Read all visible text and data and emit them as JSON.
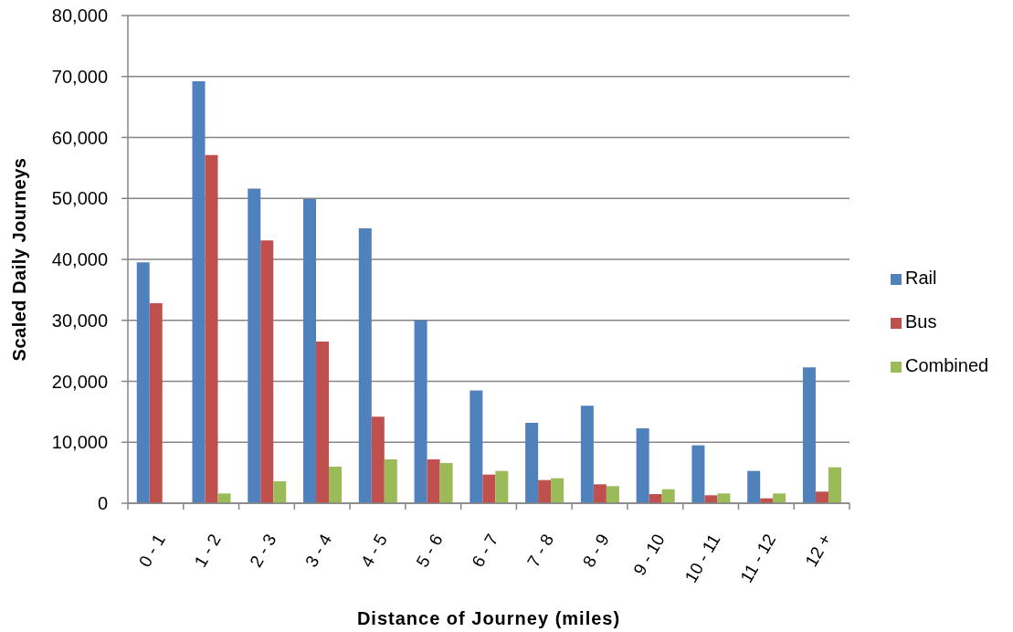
{
  "chart_data": {
    "type": "bar",
    "xlabel": "Distance of Journey (miles)",
    "ylabel": "Scaled Daily Journeys",
    "categories": [
      "0 - 1",
      "1 - 2",
      "2 - 3",
      "3 - 4",
      "4 - 5",
      "5 - 6",
      "6 - 7",
      "7 - 8",
      "8 - 9",
      "9 - 10",
      "10 - 11",
      "11 - 12",
      "12 +"
    ],
    "series": [
      {
        "name": "Rail",
        "color": "#4f81bd",
        "values": [
          39500,
          69200,
          51600,
          49900,
          45100,
          30000,
          18500,
          13200,
          16000,
          12300,
          9500,
          5300,
          22300
        ]
      },
      {
        "name": "Bus",
        "color": "#c0504d",
        "values": [
          32800,
          57100,
          43100,
          26500,
          14200,
          7200,
          4700,
          3800,
          3100,
          1500,
          1300,
          800,
          1900
        ]
      },
      {
        "name": "Combined",
        "color": "#9bbb59",
        "values": [
          null,
          1600,
          3600,
          6000,
          7200,
          6600,
          5300,
          4100,
          2800,
          2300,
          1600,
          1600,
          5900
        ]
      }
    ],
    "ylim": [
      0,
      80000
    ],
    "yticks": [
      0,
      {
        "value": 10000,
        "label": "10,000"
      },
      {
        "value": 20000,
        "label": "20,000"
      },
      {
        "value": 30000,
        "label": "30,000"
      },
      {
        "value": 40000,
        "label": "40,000"
      },
      {
        "value": 50000,
        "label": "50,000"
      },
      {
        "value": 60000,
        "label": "60,000"
      },
      {
        "value": 70000,
        "label": "70,000"
      },
      {
        "value": 80000,
        "label": "80,000"
      }
    ],
    "grid": "y",
    "legend": "right"
  }
}
